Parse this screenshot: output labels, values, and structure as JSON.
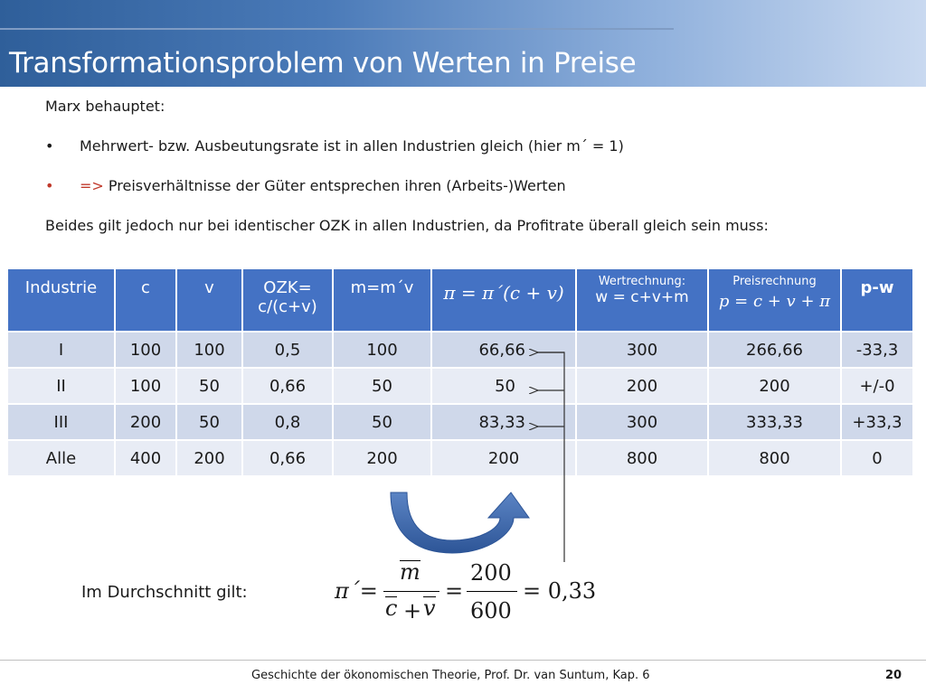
{
  "title": "Transformationsproblem von Werten in Preise",
  "intro": "Marx behauptet:",
  "bullets": [
    {
      "symbol": "•",
      "text": "Mehrwert- bzw. Ausbeutungsrate ist in allen Industrien gleich (hier m´ = 1)"
    },
    {
      "symbol": "•",
      "arrow": "=>",
      "text": " Preisverhältnisse der Güter entsprechen ihren (Arbeits-)Werten"
    }
  ],
  "statement": "Beides gilt jedoch nur bei identischer OZK in allen Industrien, da Profitrate überall gleich sein muss:",
  "table": {
    "headers": {
      "industrie": "Industrie",
      "c": "c",
      "v": "v",
      "ozk_line1": "OZK=",
      "ozk_line2": "c/(c+v)",
      "m": "m=m´v",
      "pi_formula": "π = π´(c + v)",
      "wert_small": "Wertrechnung:",
      "wert_formula": "w = c+v+m",
      "preis_small": "Preisrechnung",
      "preis_formula": "p = c + v + π",
      "pw": "p-w"
    },
    "rows": [
      {
        "industrie": "I",
        "c": "100",
        "v": "100",
        "ozk": "0,5",
        "m": "100",
        "pi": "66,66",
        "w": "300",
        "p": "266,66",
        "pw": "-33,3"
      },
      {
        "industrie": "II",
        "c": "100",
        "v": "50",
        "ozk": "0,66",
        "m": "50",
        "pi": "50",
        "w": "200",
        "p": "200",
        "pw": "+/-0"
      },
      {
        "industrie": "III",
        "c": "200",
        "v": "50",
        "ozk": "0,8",
        "m": "50",
        "pi": "83,33",
        "w": "300",
        "p": "333,33",
        "pw": "+33,3"
      },
      {
        "industrie": "Alle",
        "c": "400",
        "v": "200",
        "ozk": "0,66",
        "m": "200",
        "pi": "200",
        "w": "800",
        "p": "800",
        "pw": "0"
      }
    ]
  },
  "average": {
    "label": "Im Durchschnitt gilt:",
    "lhs": "π´=",
    "num_symbol": "m",
    "den_c": "c",
    "den_plus": "+",
    "den_v": "v",
    "eq": "=",
    "num_value": "200",
    "den_value": "600",
    "result": "= 0,33"
  },
  "footer": "Geschichte der ökonomischen Theorie, Prof. Dr. van Suntum, Kap. 6",
  "page_number": "20",
  "colors": {
    "header_blue": "#4472c4",
    "row_dark": "#cfd8ea",
    "row_light": "#e8ecf5",
    "arrow_blue": "#3a64a8",
    "accent_red": "#c0392b"
  }
}
